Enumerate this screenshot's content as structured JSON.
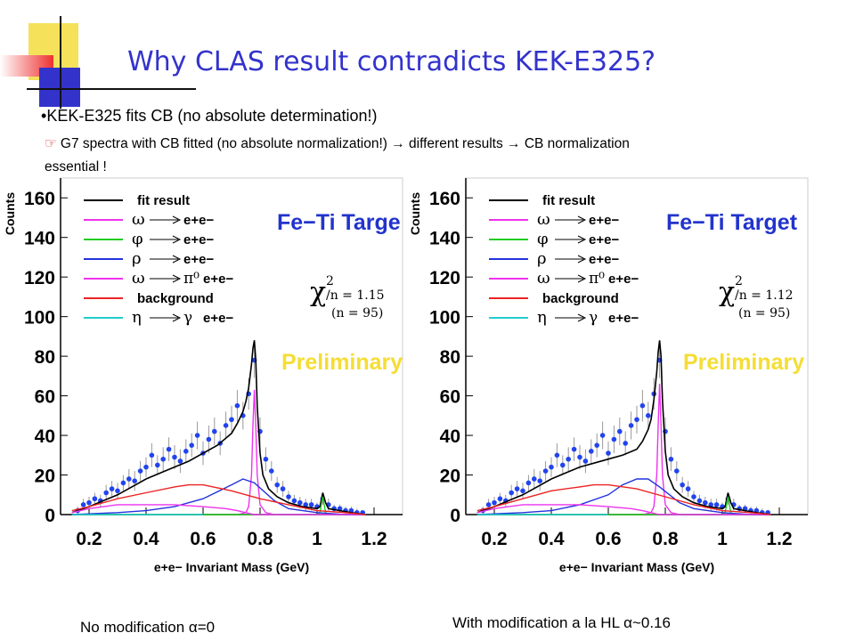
{
  "title": "Why CLAS result contradicts KEK-E325?",
  "bullets": {
    "b1_marker": "•",
    "b1_text": "KEK-E325 fits CB (no absolute determination!)",
    "b2_text_line1": "G7 spectra with CB fitted (no absolute normalization!) → different results → CB normalization",
    "b2_text_line2": "essential !",
    "b2_icon": "pointing-hand-icon"
  },
  "captions": {
    "left": "No modification α=0",
    "right": "With modification a la HL α~0.16"
  },
  "colors": {
    "title": "#3333cc",
    "deco_yellow": "#f5e15a",
    "deco_red": "#ee3030",
    "deco_blue": "#3333cc",
    "fit_result": "#000000",
    "omega": "#ee33ee",
    "phi": "#22cc22",
    "rho": "#2233dd",
    "omega_dalitz": "#ee33ee",
    "background": "#ee2222",
    "eta": "#22cccc",
    "data_points": "#2244ee",
    "preliminary": "#f5dd33",
    "target": "#2233cc"
  },
  "chart_data": [
    {
      "type": "line",
      "xlabel": "e+e− Invariant Mass (GeV)",
      "ylabel": "Counts",
      "xlim": [
        0.1,
        1.3
      ],
      "ylim": [
        0,
        170
      ],
      "xticks": [
        "0.2",
        "0.4",
        "0.6",
        "0.8",
        "1",
        "1.2"
      ],
      "yticks": [
        "0",
        "20",
        "40",
        "60",
        "80",
        "100",
        "120",
        "140",
        "160"
      ],
      "target_label": "Fe−Ti Targe",
      "preliminary": "Preliminary",
      "chi2_symbol": "χ",
      "chi2_exponent": "2",
      "chi2_text": "/n = 1.15",
      "chi2_n": "(n = 95)",
      "legend": [
        {
          "label": "fit result",
          "symbol": "",
          "arrow": false,
          "color_key": "fit_result"
        },
        {
          "label": "e+e−",
          "symbol": "ω",
          "arrow": true,
          "color_key": "omega"
        },
        {
          "label": "e+e−",
          "symbol": "φ",
          "arrow": true,
          "color_key": "phi"
        },
        {
          "label": "e+e−",
          "symbol": "ρ",
          "arrow": true,
          "color_key": "rho"
        },
        {
          "label": "e+e−",
          "symbol": "ω",
          "arrow": true,
          "product": "π⁰",
          "color_key": "omega_dalitz"
        },
        {
          "label": "background",
          "symbol": "",
          "arrow": false,
          "color_key": "background"
        },
        {
          "label": "e+e−",
          "symbol": "η",
          "arrow": true,
          "product": "γ",
          "color_key": "eta"
        }
      ],
      "series": [
        {
          "name": "fit result",
          "x": [
            0.14,
            0.2,
            0.25,
            0.3,
            0.35,
            0.4,
            0.45,
            0.5,
            0.55,
            0.6,
            0.65,
            0.7,
            0.72,
            0.74,
            0.75,
            0.76,
            0.77,
            0.775,
            0.78,
            0.785,
            0.79,
            0.8,
            0.81,
            0.83,
            0.86,
            0.9,
            0.95,
            1.0,
            1.01,
            1.02,
            1.03,
            1.04,
            1.08,
            1.12,
            1.17
          ],
          "y": [
            1,
            4,
            7,
            10,
            14,
            18,
            21,
            24,
            27,
            31,
            35,
            41,
            46,
            52,
            57,
            64,
            76,
            84,
            88,
            78,
            55,
            31,
            20,
            13,
            9,
            6,
            4,
            3,
            4,
            11,
            6,
            3,
            2,
            1,
            0
          ]
        },
        {
          "name": "omega",
          "x": [
            0.72,
            0.75,
            0.76,
            0.77,
            0.775,
            0.78,
            0.785,
            0.79,
            0.8,
            0.82,
            0.85
          ],
          "y": [
            0,
            1,
            4,
            20,
            45,
            63,
            45,
            20,
            5,
            1,
            0
          ]
        },
        {
          "name": "phi",
          "x": [
            0.14,
            1.0,
            1.01,
            1.015,
            1.02,
            1.025,
            1.03,
            1.04,
            1.17
          ],
          "y": [
            0,
            0,
            1,
            5,
            9,
            5,
            1,
            0,
            0
          ]
        },
        {
          "name": "rho",
          "x": [
            0.14,
            0.3,
            0.4,
            0.5,
            0.6,
            0.7,
            0.74,
            0.78,
            0.85,
            0.9,
            1.0,
            1.1,
            1.17
          ],
          "y": [
            0,
            1,
            2,
            4,
            8,
            15,
            18,
            16,
            7,
            3,
            1,
            0,
            0
          ]
        },
        {
          "name": "omega dalitz",
          "x": [
            0.14,
            0.2,
            0.3,
            0.4,
            0.5,
            0.6,
            0.68,
            0.72,
            0.75,
            0.78,
            0.85,
            1.0,
            1.17
          ],
          "y": [
            1,
            3,
            5,
            5,
            5,
            4,
            3,
            2,
            1,
            0,
            0,
            0,
            0
          ]
        },
        {
          "name": "background",
          "x": [
            0.14,
            0.2,
            0.3,
            0.4,
            0.5,
            0.55,
            0.6,
            0.7,
            0.8,
            0.9,
            1.0,
            1.1,
            1.17
          ],
          "y": [
            2,
            4,
            8,
            11,
            14,
            15,
            15,
            12,
            8,
            5,
            2,
            1,
            0
          ]
        },
        {
          "name": "eta",
          "x": [
            0.14,
            0.3,
            0.5,
            0.6
          ],
          "y": [
            0,
            0,
            0,
            0
          ]
        }
      ],
      "points": {
        "x": [
          0.16,
          0.18,
          0.2,
          0.22,
          0.24,
          0.26,
          0.28,
          0.3,
          0.32,
          0.34,
          0.36,
          0.38,
          0.4,
          0.42,
          0.44,
          0.46,
          0.48,
          0.5,
          0.52,
          0.54,
          0.56,
          0.58,
          0.6,
          0.62,
          0.64,
          0.66,
          0.68,
          0.7,
          0.72,
          0.74,
          0.76,
          0.78,
          0.8,
          0.82,
          0.84,
          0.86,
          0.88,
          0.9,
          0.92,
          0.94,
          0.96,
          0.98,
          1.0,
          1.02,
          1.04,
          1.06,
          1.08,
          1.1,
          1.12,
          1.14,
          1.16
        ],
        "y": [
          2,
          5,
          6,
          8,
          7,
          11,
          13,
          12,
          16,
          18,
          17,
          22,
          24,
          30,
          25,
          28,
          33,
          29,
          27,
          32,
          35,
          40,
          31,
          38,
          42,
          36,
          45,
          48,
          55,
          50,
          61,
          78,
          42,
          28,
          22,
          15,
          13,
          9,
          7,
          6,
          5,
          5,
          4,
          8,
          5,
          3,
          3,
          2,
          2,
          1,
          1
        ],
        "err": [
          2,
          3,
          3,
          3,
          3,
          4,
          4,
          4,
          4,
          5,
          5,
          5,
          5,
          6,
          5,
          6,
          6,
          6,
          6,
          6,
          6,
          7,
          6,
          7,
          7,
          6,
          7,
          7,
          8,
          7,
          8,
          9,
          7,
          6,
          5,
          4,
          4,
          3,
          3,
          3,
          3,
          3,
          2,
          3,
          3,
          2,
          2,
          2,
          2,
          2,
          1
        ]
      }
    },
    {
      "type": "line",
      "xlabel": "e+e− Invariant Mass (GeV)",
      "ylabel": "Counts",
      "xlim": [
        0.1,
        1.3
      ],
      "ylim": [
        0,
        170
      ],
      "xticks": [
        "0.2",
        "0.4",
        "0.6",
        "0.8",
        "1",
        "1.2"
      ],
      "yticks": [
        "0",
        "20",
        "40",
        "60",
        "80",
        "100",
        "120",
        "140",
        "160"
      ],
      "target_label": "Fe−Ti Target",
      "preliminary": "Preliminary",
      "chi2_symbol": "χ",
      "chi2_exponent": "2",
      "chi2_text": "/n = 1.12",
      "chi2_n": "(n = 95)",
      "legend": [
        {
          "label": "fit result",
          "symbol": "",
          "arrow": false,
          "color_key": "fit_result"
        },
        {
          "label": "e+e−",
          "symbol": "ω",
          "arrow": true,
          "color_key": "omega"
        },
        {
          "label": "e+e−",
          "symbol": "φ",
          "arrow": true,
          "color_key": "phi"
        },
        {
          "label": "e+e−",
          "symbol": "ρ",
          "arrow": true,
          "color_key": "rho"
        },
        {
          "label": "e+e−",
          "symbol": "ω",
          "arrow": true,
          "product": "π⁰",
          "color_key": "omega_dalitz"
        },
        {
          "label": "background",
          "symbol": "",
          "arrow": false,
          "color_key": "background"
        },
        {
          "label": "e+e−",
          "symbol": "η",
          "arrow": true,
          "product": "γ",
          "color_key": "eta"
        }
      ],
      "series": [
        {
          "name": "fit result",
          "x": [
            0.14,
            0.2,
            0.25,
            0.3,
            0.35,
            0.4,
            0.45,
            0.5,
            0.55,
            0.6,
            0.65,
            0.7,
            0.72,
            0.74,
            0.75,
            0.76,
            0.77,
            0.775,
            0.78,
            0.785,
            0.79,
            0.8,
            0.81,
            0.83,
            0.86,
            0.9,
            0.95,
            1.0,
            1.01,
            1.02,
            1.03,
            1.04,
            1.08,
            1.12,
            1.17
          ],
          "y": [
            1,
            4,
            7,
            10,
            14,
            18,
            21,
            24,
            26,
            28,
            30,
            33,
            37,
            43,
            48,
            58,
            72,
            82,
            88,
            80,
            58,
            32,
            20,
            13,
            9,
            6,
            4,
            3,
            4,
            11,
            6,
            3,
            2,
            1,
            0
          ]
        },
        {
          "name": "omega",
          "x": [
            0.72,
            0.75,
            0.76,
            0.77,
            0.775,
            0.78,
            0.785,
            0.79,
            0.8,
            0.82,
            0.85
          ],
          "y": [
            0,
            1,
            4,
            20,
            45,
            66,
            45,
            20,
            5,
            1,
            0
          ]
        },
        {
          "name": "phi",
          "x": [
            0.14,
            1.0,
            1.01,
            1.015,
            1.02,
            1.025,
            1.03,
            1.04,
            1.17
          ],
          "y": [
            0,
            0,
            1,
            5,
            9,
            5,
            1,
            0,
            0
          ]
        },
        {
          "name": "rho",
          "x": [
            0.14,
            0.3,
            0.4,
            0.5,
            0.6,
            0.65,
            0.7,
            0.74,
            0.78,
            0.85,
            0.9,
            1.0,
            1.1,
            1.17
          ],
          "y": [
            0,
            1,
            2,
            5,
            10,
            15,
            18,
            18,
            14,
            6,
            3,
            1,
            0,
            0
          ]
        },
        {
          "name": "omega dalitz",
          "x": [
            0.14,
            0.2,
            0.3,
            0.4,
            0.5,
            0.6,
            0.68,
            0.72,
            0.75,
            0.78,
            0.85,
            1.0,
            1.17
          ],
          "y": [
            1,
            3,
            5,
            5,
            5,
            4,
            3,
            2,
            1,
            0,
            0,
            0,
            0
          ]
        },
        {
          "name": "background",
          "x": [
            0.14,
            0.2,
            0.3,
            0.4,
            0.5,
            0.55,
            0.6,
            0.7,
            0.8,
            0.9,
            1.0,
            1.1,
            1.17
          ],
          "y": [
            2,
            4,
            8,
            12,
            14,
            15,
            15,
            13,
            9,
            5,
            2,
            1,
            0
          ]
        },
        {
          "name": "eta",
          "x": [
            0.14,
            0.3,
            0.5,
            0.6
          ],
          "y": [
            0,
            0,
            0,
            0
          ]
        }
      ],
      "points": {
        "x": [
          0.16,
          0.18,
          0.2,
          0.22,
          0.24,
          0.26,
          0.28,
          0.3,
          0.32,
          0.34,
          0.36,
          0.38,
          0.4,
          0.42,
          0.44,
          0.46,
          0.48,
          0.5,
          0.52,
          0.54,
          0.56,
          0.58,
          0.6,
          0.62,
          0.64,
          0.66,
          0.68,
          0.7,
          0.72,
          0.74,
          0.76,
          0.78,
          0.8,
          0.82,
          0.84,
          0.86,
          0.88,
          0.9,
          0.92,
          0.94,
          0.96,
          0.98,
          1.0,
          1.02,
          1.04,
          1.06,
          1.08,
          1.1,
          1.12,
          1.14,
          1.16
        ],
        "y": [
          2,
          5,
          6,
          8,
          7,
          11,
          13,
          12,
          16,
          18,
          17,
          22,
          24,
          30,
          25,
          28,
          33,
          29,
          27,
          32,
          35,
          40,
          31,
          38,
          42,
          36,
          45,
          48,
          55,
          50,
          61,
          78,
          42,
          28,
          22,
          15,
          13,
          9,
          7,
          6,
          5,
          5,
          4,
          8,
          5,
          3,
          3,
          2,
          2,
          1,
          1
        ],
        "err": [
          2,
          3,
          3,
          3,
          3,
          4,
          4,
          4,
          4,
          5,
          5,
          5,
          5,
          6,
          5,
          6,
          6,
          6,
          6,
          6,
          6,
          7,
          6,
          7,
          7,
          6,
          7,
          7,
          8,
          7,
          8,
          9,
          7,
          6,
          5,
          4,
          4,
          3,
          3,
          3,
          3,
          3,
          2,
          3,
          3,
          2,
          2,
          2,
          2,
          2,
          1
        ]
      }
    }
  ]
}
